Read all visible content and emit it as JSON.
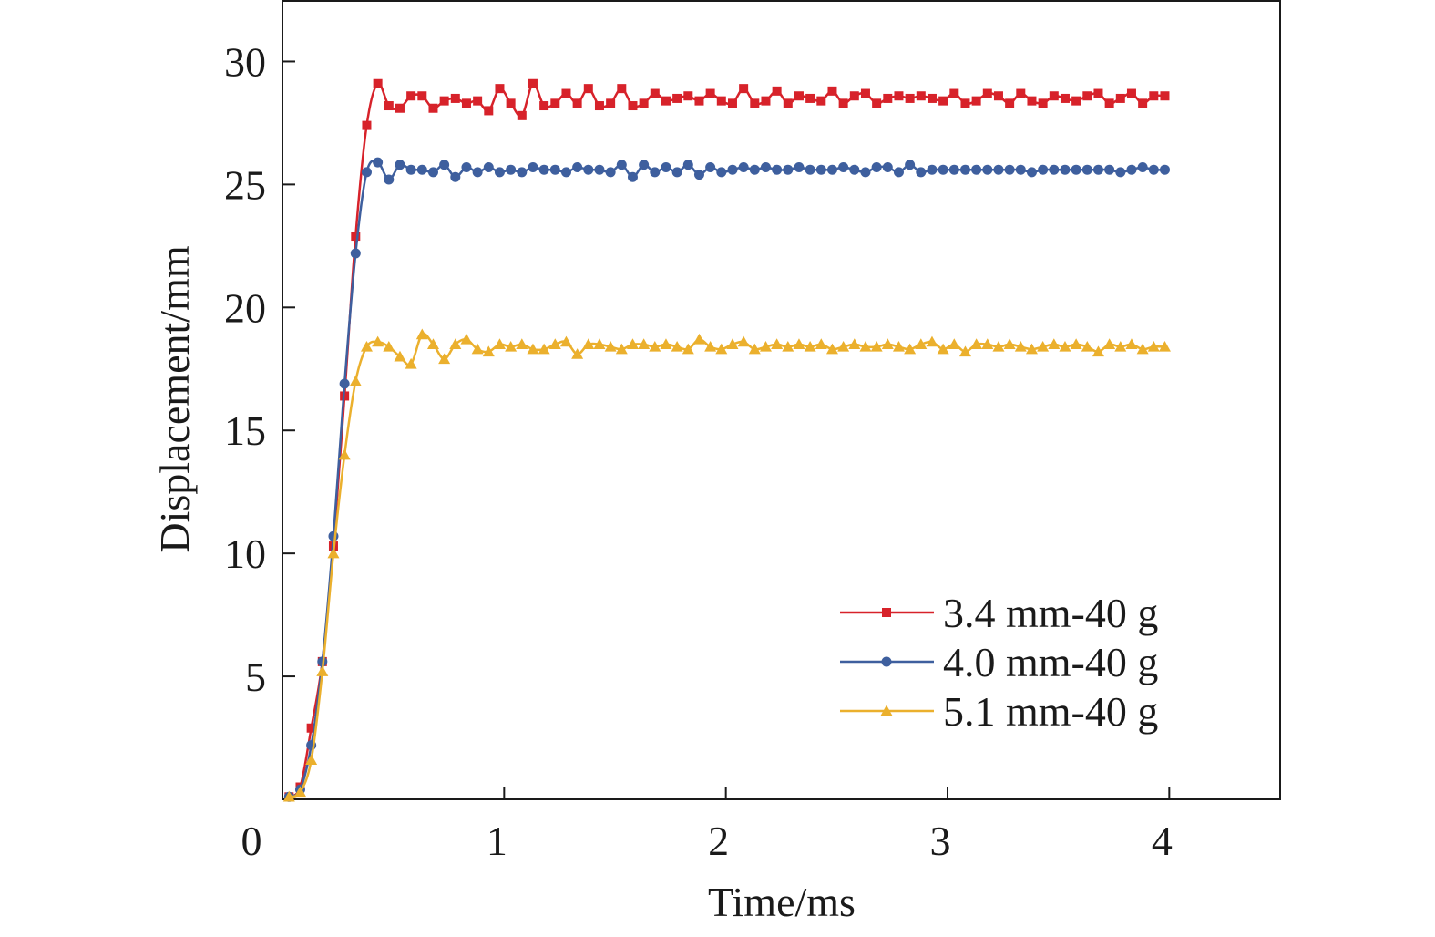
{
  "chart_data": {
    "type": "line",
    "xlabel": "Time/ms",
    "ylabel": "Displacement/mm",
    "xlim": [
      0,
      4.5
    ],
    "ylim": [
      0,
      32.5
    ],
    "x_ticks": [
      0,
      1,
      2,
      3,
      4
    ],
    "x_tick_labels": [
      "0",
      "1",
      "2",
      "3",
      "4"
    ],
    "y_ticks": [
      5,
      10,
      15,
      20,
      25,
      30
    ],
    "y_tick_labels": [
      "5",
      "10",
      "15",
      "20",
      "25",
      "30"
    ],
    "legend_position": "bottom-right",
    "grid": false,
    "series": [
      {
        "name": "3.4 mm-40 g",
        "color": "#d7222a",
        "marker": "square",
        "x": [
          0.03,
          0.08,
          0.13,
          0.18,
          0.23,
          0.28,
          0.33,
          0.38,
          0.43,
          0.48,
          0.53,
          0.58,
          0.63,
          0.68,
          0.73,
          0.78,
          0.83,
          0.88,
          0.93,
          0.98,
          1.03,
          1.08,
          1.13,
          1.18,
          1.23,
          1.28,
          1.33,
          1.38,
          1.43,
          1.48,
          1.53,
          1.58,
          1.63,
          1.68,
          1.73,
          1.78,
          1.83,
          1.88,
          1.93,
          1.98,
          2.03,
          2.08,
          2.13,
          2.18,
          2.23,
          2.28,
          2.33,
          2.38,
          2.43,
          2.48,
          2.53,
          2.58,
          2.63,
          2.68,
          2.73,
          2.78,
          2.83,
          2.88,
          2.93,
          2.98,
          3.03,
          3.08,
          3.13,
          3.18,
          3.23,
          3.28,
          3.33,
          3.38,
          3.43,
          3.48,
          3.53,
          3.58,
          3.63,
          3.68,
          3.73,
          3.78,
          3.83,
          3.88,
          3.93,
          3.98
        ],
        "y": [
          0.1,
          0.5,
          2.9,
          5.6,
          10.3,
          16.4,
          22.9,
          27.4,
          29.1,
          28.2,
          28.1,
          28.6,
          28.6,
          28.1,
          28.4,
          28.5,
          28.3,
          28.4,
          28.0,
          28.9,
          28.3,
          27.8,
          29.1,
          28.2,
          28.3,
          28.7,
          28.3,
          28.9,
          28.2,
          28.3,
          28.9,
          28.2,
          28.3,
          28.7,
          28.4,
          28.5,
          28.6,
          28.4,
          28.7,
          28.4,
          28.3,
          28.9,
          28.3,
          28.4,
          28.8,
          28.3,
          28.6,
          28.5,
          28.4,
          28.8,
          28.3,
          28.6,
          28.7,
          28.3,
          28.5,
          28.6,
          28.5,
          28.6,
          28.5,
          28.4,
          28.7,
          28.3,
          28.4,
          28.7,
          28.6,
          28.3,
          28.7,
          28.4,
          28.3,
          28.6,
          28.5,
          28.4,
          28.6,
          28.7,
          28.3,
          28.5,
          28.7,
          28.3,
          28.6,
          28.6
        ]
      },
      {
        "name": "4.0 mm-40 g",
        "color": "#3e5f9e",
        "marker": "circle",
        "x": [
          0.03,
          0.08,
          0.13,
          0.18,
          0.23,
          0.28,
          0.33,
          0.38,
          0.43,
          0.48,
          0.53,
          0.58,
          0.63,
          0.68,
          0.73,
          0.78,
          0.83,
          0.88,
          0.93,
          0.98,
          1.03,
          1.08,
          1.13,
          1.18,
          1.23,
          1.28,
          1.33,
          1.38,
          1.43,
          1.48,
          1.53,
          1.58,
          1.63,
          1.68,
          1.73,
          1.78,
          1.83,
          1.88,
          1.93,
          1.98,
          2.03,
          2.08,
          2.13,
          2.18,
          2.23,
          2.28,
          2.33,
          2.38,
          2.43,
          2.48,
          2.53,
          2.58,
          2.63,
          2.68,
          2.73,
          2.78,
          2.83,
          2.88,
          2.93,
          2.98,
          3.03,
          3.08,
          3.13,
          3.18,
          3.23,
          3.28,
          3.33,
          3.38,
          3.43,
          3.48,
          3.53,
          3.58,
          3.63,
          3.68,
          3.73,
          3.78,
          3.83,
          3.88,
          3.93,
          3.98
        ],
        "y": [
          0.1,
          0.4,
          2.2,
          5.6,
          10.7,
          16.9,
          22.2,
          25.5,
          25.9,
          25.2,
          25.8,
          25.6,
          25.6,
          25.5,
          25.8,
          25.3,
          25.7,
          25.5,
          25.7,
          25.5,
          25.6,
          25.5,
          25.7,
          25.6,
          25.6,
          25.5,
          25.7,
          25.6,
          25.6,
          25.5,
          25.8,
          25.3,
          25.8,
          25.5,
          25.7,
          25.5,
          25.8,
          25.4,
          25.7,
          25.5,
          25.6,
          25.7,
          25.6,
          25.7,
          25.6,
          25.6,
          25.7,
          25.6,
          25.6,
          25.6,
          25.7,
          25.6,
          25.5,
          25.7,
          25.7,
          25.5,
          25.8,
          25.5,
          25.6,
          25.6,
          25.6,
          25.6,
          25.6,
          25.6,
          25.6,
          25.6,
          25.6,
          25.5,
          25.6,
          25.6,
          25.6,
          25.6,
          25.6,
          25.6,
          25.6,
          25.5,
          25.6,
          25.7,
          25.6,
          25.6
        ]
      },
      {
        "name": "5.1 mm-40 g",
        "color": "#ebb02d",
        "marker": "triangle",
        "x": [
          0.03,
          0.08,
          0.13,
          0.18,
          0.23,
          0.28,
          0.33,
          0.38,
          0.43,
          0.48,
          0.53,
          0.58,
          0.63,
          0.68,
          0.73,
          0.78,
          0.83,
          0.88,
          0.93,
          0.98,
          1.03,
          1.08,
          1.13,
          1.18,
          1.23,
          1.28,
          1.33,
          1.38,
          1.43,
          1.48,
          1.53,
          1.58,
          1.63,
          1.68,
          1.73,
          1.78,
          1.83,
          1.88,
          1.93,
          1.98,
          2.03,
          2.08,
          2.13,
          2.18,
          2.23,
          2.28,
          2.33,
          2.38,
          2.43,
          2.48,
          2.53,
          2.58,
          2.63,
          2.68,
          2.73,
          2.78,
          2.83,
          2.88,
          2.93,
          2.98,
          3.03,
          3.08,
          3.13,
          3.18,
          3.23,
          3.28,
          3.33,
          3.38,
          3.43,
          3.48,
          3.53,
          3.58,
          3.63,
          3.68,
          3.73,
          3.78,
          3.83,
          3.88,
          3.93,
          3.98
        ],
        "y": [
          0.1,
          0.3,
          1.6,
          5.2,
          10.0,
          14.0,
          17.0,
          18.4,
          18.6,
          18.4,
          18.0,
          17.7,
          18.9,
          18.5,
          17.9,
          18.5,
          18.7,
          18.3,
          18.2,
          18.5,
          18.4,
          18.5,
          18.3,
          18.3,
          18.5,
          18.6,
          18.1,
          18.5,
          18.5,
          18.4,
          18.3,
          18.5,
          18.5,
          18.4,
          18.5,
          18.4,
          18.3,
          18.7,
          18.4,
          18.3,
          18.5,
          18.6,
          18.3,
          18.4,
          18.5,
          18.4,
          18.5,
          18.4,
          18.5,
          18.3,
          18.4,
          18.5,
          18.4,
          18.4,
          18.5,
          18.4,
          18.3,
          18.5,
          18.6,
          18.3,
          18.5,
          18.2,
          18.5,
          18.5,
          18.4,
          18.5,
          18.4,
          18.3,
          18.4,
          18.5,
          18.4,
          18.5,
          18.4,
          18.2,
          18.5,
          18.4,
          18.5,
          18.3,
          18.4,
          18.4
        ]
      }
    ]
  }
}
